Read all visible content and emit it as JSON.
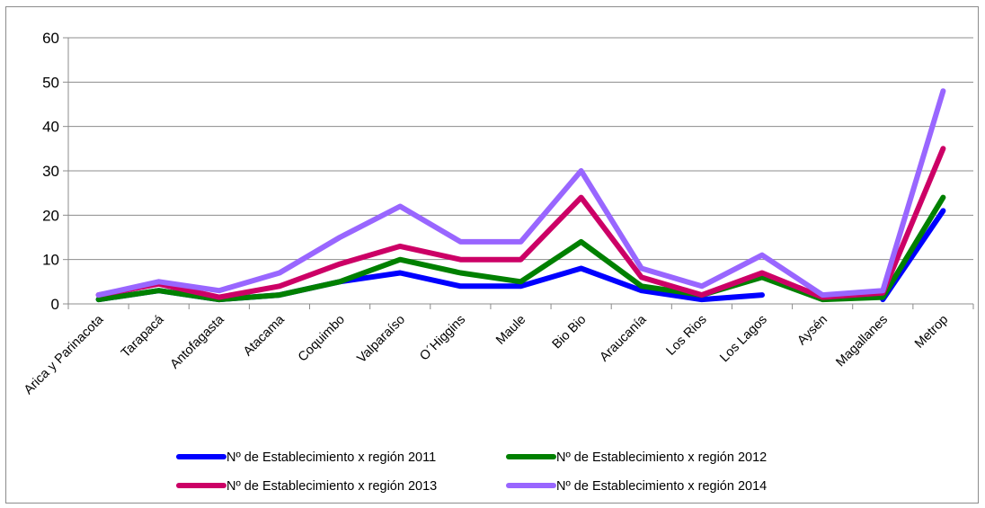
{
  "chart_data": {
    "type": "line",
    "title": "",
    "xlabel": "",
    "ylabel": "",
    "ylim": [
      0,
      60
    ],
    "yticks": [
      0,
      10,
      20,
      30,
      40,
      50,
      60
    ],
    "grid": "horizontal",
    "legend_position": "bottom",
    "categories": [
      "Arica y Parinacota",
      "Tarapacá",
      "Antofagasta",
      "Atacama",
      "Coquimbo",
      "Valparaíso",
      "O´Higgins",
      "Maule",
      "Bio Bio",
      "Araucanía",
      "Los Rios",
      "Los Lagos",
      "Aysén",
      "Magallanes",
      "Metrop"
    ],
    "series": [
      {
        "name": "Nº de Establecimiento x región 2011",
        "color": "#0000ff",
        "values": [
          1,
          3,
          1,
          2,
          5,
          7,
          4,
          4,
          8,
          3,
          1,
          2,
          null,
          1,
          21
        ]
      },
      {
        "name": "Nº de Establecimiento x región 2012",
        "color": "#008000",
        "values": [
          1,
          3,
          1,
          2,
          5,
          10,
          7,
          5,
          14,
          4,
          2,
          6,
          1,
          1.5,
          24
        ]
      },
      {
        "name": "Nº de Establecimiento x región 2013",
        "color": "#cc0066",
        "values": [
          2,
          4.5,
          1.5,
          4,
          9,
          13,
          10,
          10,
          24,
          6,
          2,
          7,
          1.5,
          2.5,
          35
        ]
      },
      {
        "name": "Nº de Establecimiento x región 2014",
        "color": "#9966ff",
        "values": [
          2,
          5,
          3,
          7,
          15,
          22,
          14,
          14,
          30,
          8,
          4,
          11,
          2,
          3,
          48
        ]
      }
    ]
  }
}
